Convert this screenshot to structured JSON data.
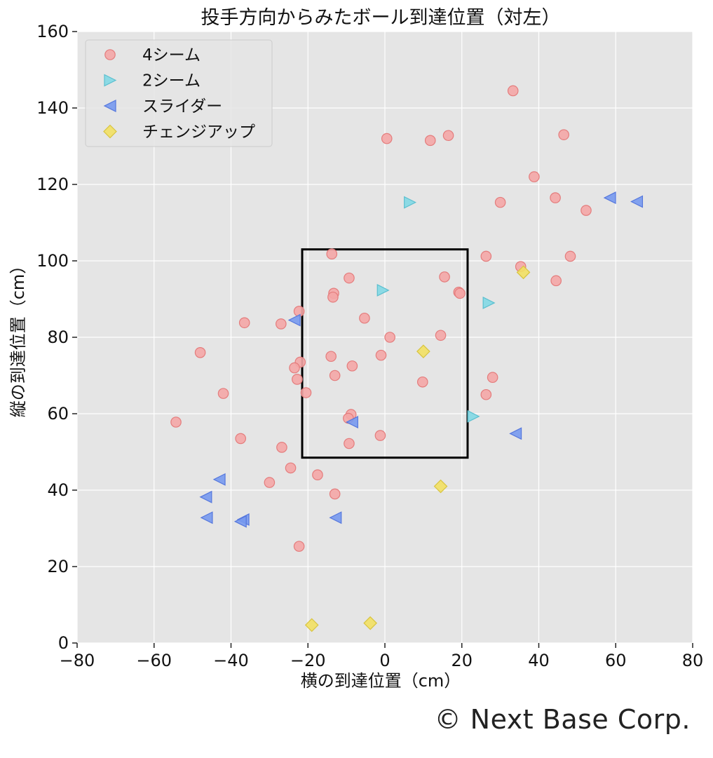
{
  "chart_data": {
    "type": "scatter",
    "title": "投手方向からみたボール到達位置（対左）",
    "xlabel": "横の到達位置（cm）",
    "ylabel": "縦の到達位置（cm）",
    "xlim": [
      -80,
      80
    ],
    "ylim": [
      0,
      160
    ],
    "xticks": [
      -80,
      -60,
      -40,
      -20,
      0,
      20,
      40,
      60,
      80
    ],
    "yticks": [
      0,
      20,
      40,
      60,
      80,
      100,
      120,
      140,
      160
    ],
    "xtick_labels": [
      "−80",
      "−60",
      "−40",
      "−20",
      "0",
      "20",
      "40",
      "60",
      "80"
    ],
    "ytick_labels": [
      "0",
      "20",
      "40",
      "60",
      "80",
      "100",
      "120",
      "140",
      "160"
    ],
    "grid": true,
    "background": "#e5e5e5",
    "legend_position": "top-left",
    "strike_zone": {
      "x": [
        -21.5,
        21.5
      ],
      "y": [
        48.5,
        103
      ]
    },
    "series": [
      {
        "name": "4シーム",
        "marker": "circle",
        "color": "#f4a6a6",
        "edge": "#e47c7c",
        "points": [
          [
            33.3,
            144.5
          ],
          [
            0.5,
            132
          ],
          [
            11.8,
            131.5
          ],
          [
            16.5,
            132.8
          ],
          [
            46.5,
            133
          ],
          [
            38.8,
            122
          ],
          [
            30,
            115.3
          ],
          [
            44.3,
            116.5
          ],
          [
            52.3,
            113.2
          ],
          [
            -13.8,
            101.8
          ],
          [
            26.3,
            101.2
          ],
          [
            48.2,
            101.2
          ],
          [
            35.3,
            98.5
          ],
          [
            44.5,
            94.8
          ],
          [
            -9.3,
            95.5
          ],
          [
            15.5,
            95.8
          ],
          [
            19.2,
            91.8
          ],
          [
            19.5,
            91.5
          ],
          [
            -13.3,
            91.5
          ],
          [
            -13.5,
            90.5
          ],
          [
            -22.3,
            86.8
          ],
          [
            -5.3,
            85
          ],
          [
            -36.5,
            83.8
          ],
          [
            -27,
            83.5
          ],
          [
            1.3,
            80
          ],
          [
            14.5,
            80.5
          ],
          [
            -48,
            76
          ],
          [
            -14,
            75
          ],
          [
            -1,
            75.3
          ],
          [
            -22,
            73.5
          ],
          [
            -23.5,
            72
          ],
          [
            -8.5,
            72.5
          ],
          [
            -13,
            70
          ],
          [
            28,
            69.5
          ],
          [
            -22.8,
            69
          ],
          [
            9.8,
            68.3
          ],
          [
            -42,
            65.3
          ],
          [
            -20.5,
            65.5
          ],
          [
            26.3,
            65
          ],
          [
            -8.8,
            59.8
          ],
          [
            -9.5,
            58.8
          ],
          [
            -54.3,
            57.8
          ],
          [
            -1.2,
            54.3
          ],
          [
            -37.5,
            53.5
          ],
          [
            -9.3,
            52.2
          ],
          [
            -26.8,
            51.2
          ],
          [
            -24.5,
            45.8
          ],
          [
            -17.5,
            44
          ],
          [
            -30,
            42
          ],
          [
            -13,
            39
          ],
          [
            -22.3,
            25.3
          ]
        ]
      },
      {
        "name": "2シーム",
        "marker": "triangle-right",
        "color": "#82d8e4",
        "edge": "#5bbfcf",
        "points": [
          [
            6.5,
            115.3
          ],
          [
            -0.5,
            92.3
          ],
          [
            27,
            89
          ],
          [
            23,
            59.3
          ]
        ]
      },
      {
        "name": "スライダー",
        "marker": "triangle-left",
        "color": "#7799ee",
        "edge": "#5577dd",
        "points": [
          [
            58.5,
            116.5
          ],
          [
            65.5,
            115.5
          ],
          [
            -23.5,
            84.5
          ],
          [
            -8.5,
            57.8
          ],
          [
            34,
            54.8
          ],
          [
            -43,
            42.8
          ],
          [
            -46.5,
            38.2
          ],
          [
            -46.3,
            32.8
          ],
          [
            -12.8,
            32.8
          ],
          [
            -36.8,
            32.3
          ],
          [
            -37.5,
            31.8
          ]
        ]
      },
      {
        "name": "チェンジアップ",
        "marker": "diamond",
        "color": "#f2e063",
        "edge": "#d8c440",
        "points": [
          [
            36,
            97
          ],
          [
            10,
            76.3
          ],
          [
            14.5,
            41
          ],
          [
            -19,
            4.7
          ],
          [
            -3.8,
            5.2
          ]
        ]
      }
    ]
  },
  "credit": "© Next Base Corp."
}
